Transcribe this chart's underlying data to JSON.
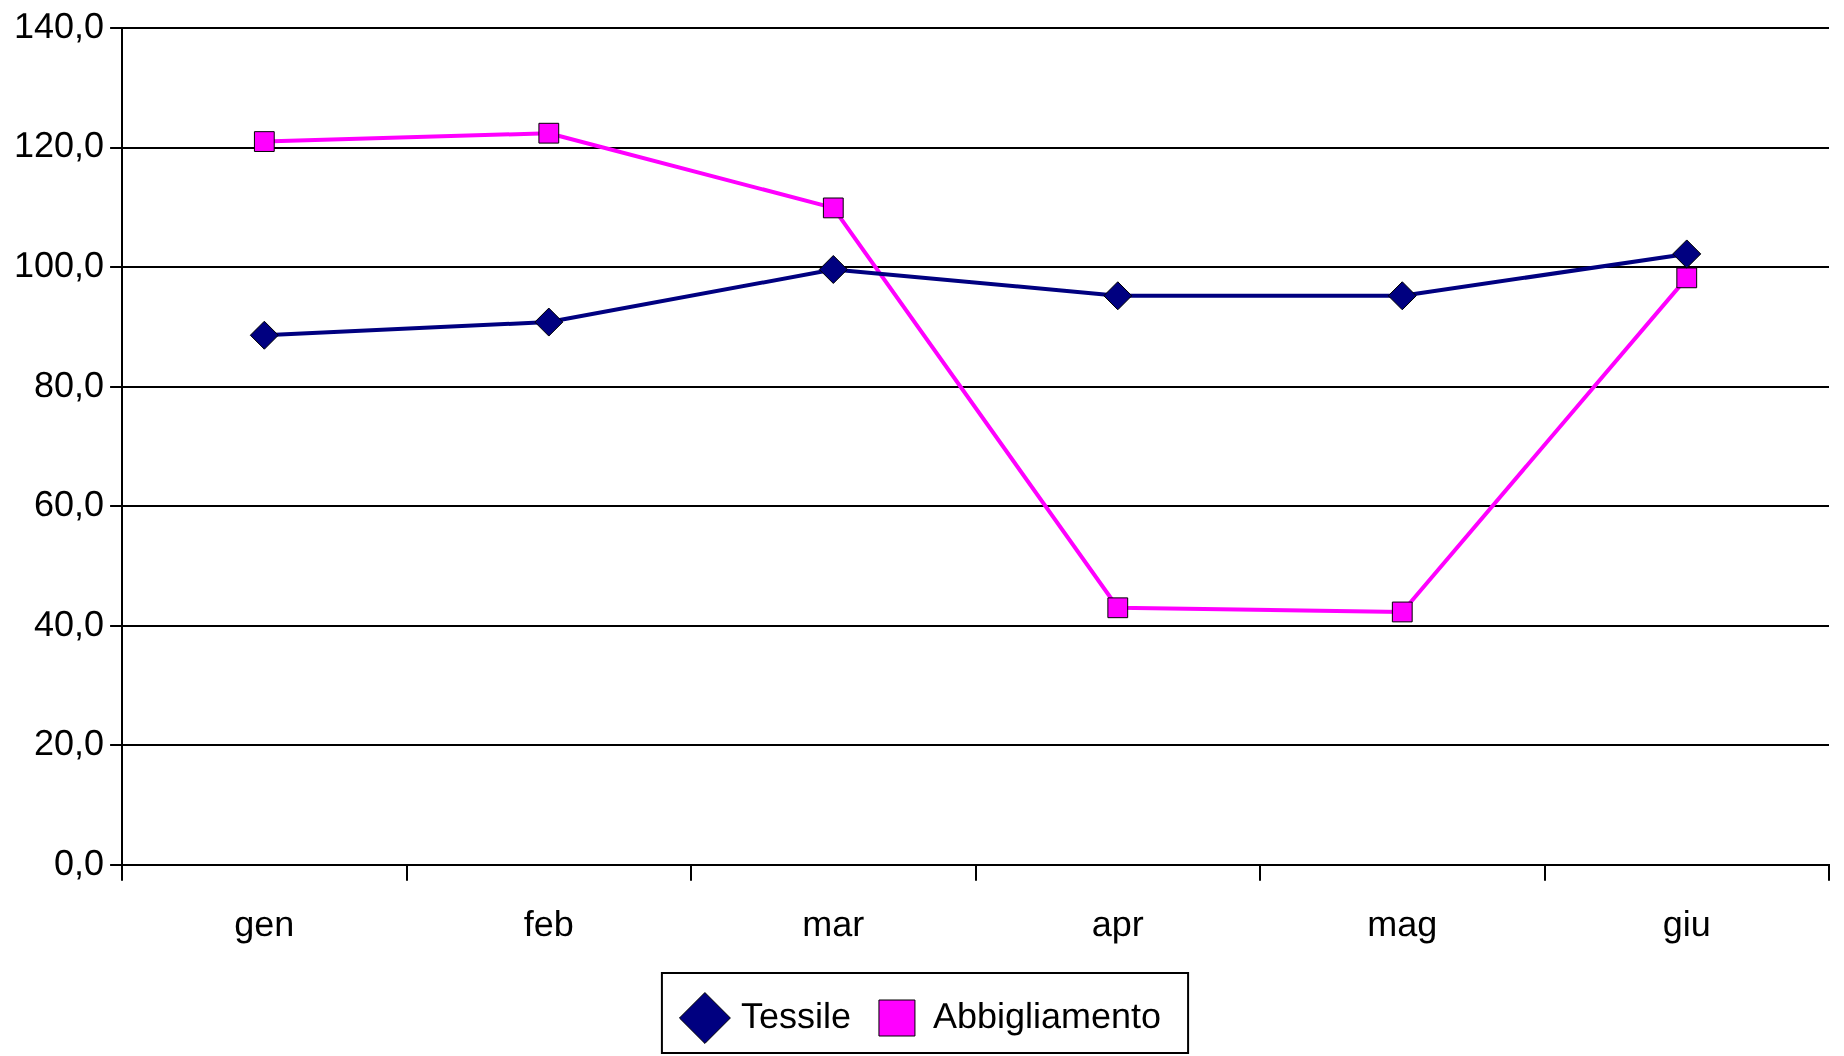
{
  "chart_data": {
    "type": "line",
    "categories": [
      "gen",
      "feb",
      "mar",
      "apr",
      "mag",
      "giu"
    ],
    "series": [
      {
        "name": "Tessile",
        "color": "#000080",
        "marker": "diamond",
        "values": [
          88.6,
          90.8,
          99.6,
          95.2,
          95.2,
          102.2
        ]
      },
      {
        "name": "Abbigliamento",
        "color": "#ff00ff",
        "marker": "square",
        "values": [
          121.0,
          122.4,
          109.9,
          43.0,
          42.3,
          98.2
        ]
      }
    ],
    "ylim": [
      0,
      140
    ],
    "yticks": [
      {
        "value": 0,
        "label": "0,0"
      },
      {
        "value": 20,
        "label": "20,0"
      },
      {
        "value": 40,
        "label": "40,0"
      },
      {
        "value": 60,
        "label": "60,0"
      },
      {
        "value": 80,
        "label": "80,0"
      },
      {
        "value": 100,
        "label": "100,0"
      },
      {
        "value": 120,
        "label": "120,0"
      },
      {
        "value": 140,
        "label": "140,0"
      }
    ],
    "grid": "y",
    "legend": "bottom",
    "line_style": "solid"
  }
}
